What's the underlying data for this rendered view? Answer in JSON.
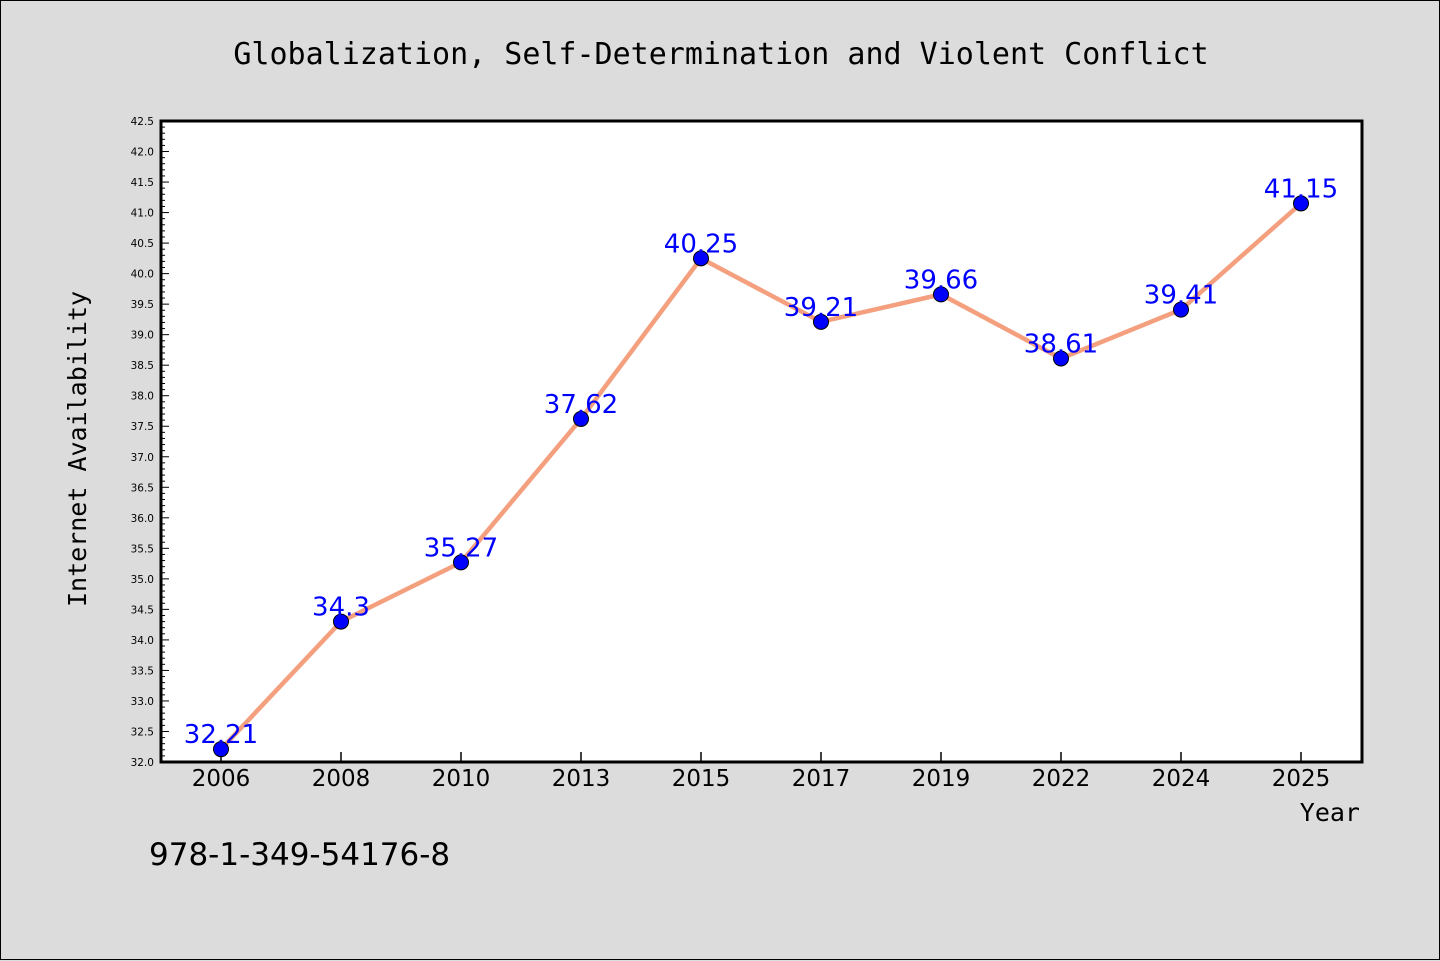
{
  "chart_data": {
    "type": "line",
    "title": "Globalization, Self-Determination and Violent Conflict",
    "xlabel": "Year",
    "ylabel": "Internet Availability",
    "categories": [
      "2006",
      "2008",
      "2010",
      "2013",
      "2015",
      "2017",
      "2019",
      "2022",
      "2024",
      "2025"
    ],
    "series": [
      {
        "values": [
          32.21,
          34.3,
          35.27,
          37.62,
          40.25,
          39.21,
          39.66,
          38.61,
          39.41,
          41.15
        ],
        "labels": [
          "32.21",
          "34.3",
          "35.27",
          "37.62",
          "40.25",
          "39.21",
          "39.66",
          "38.61",
          "39.41",
          "41.15"
        ],
        "line_color": "#f4a07f",
        "marker_color": "#0000ff"
      }
    ],
    "ylim": [
      32.0,
      42.5
    ],
    "yticks": [
      "32.0",
      "32.5",
      "33.0",
      "33.5",
      "34.0",
      "34.5",
      "35.0",
      "35.5",
      "36.0",
      "36.5",
      "37.0",
      "37.5",
      "38.0",
      "38.5",
      "39.0",
      "39.5",
      "40.0",
      "40.5",
      "41.0",
      "41.5",
      "42.0",
      "42.5"
    ],
    "grid": false,
    "legend": "none"
  },
  "footer": {
    "isbn": "978-1-349-54176-8"
  },
  "colors": {
    "background": "#dcdcdc",
    "plot_background": "#ffffff",
    "line": "#f4a07f",
    "marker": "#0000ff",
    "data_label": "#0000ff"
  }
}
